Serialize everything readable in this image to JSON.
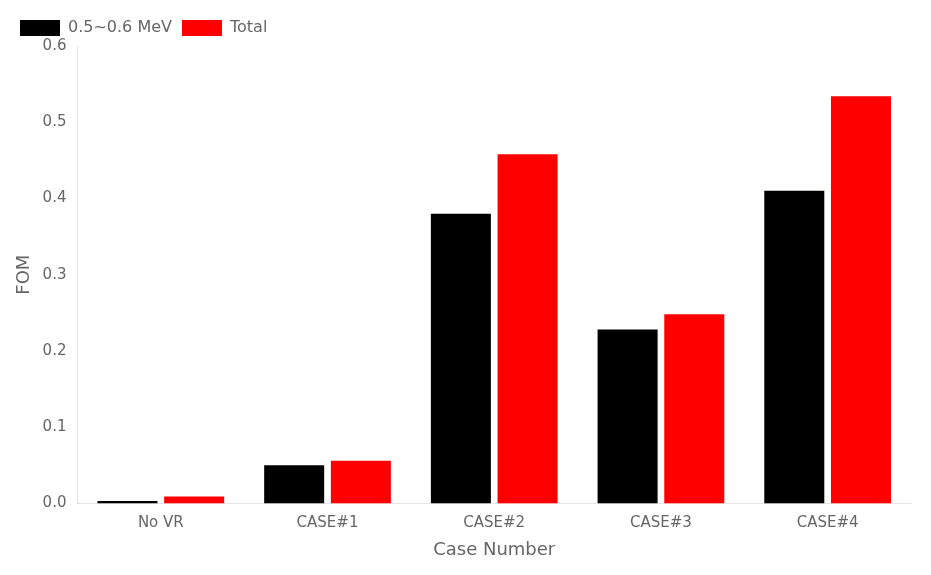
{
  "chart_data": {
    "type": "bar",
    "categories": [
      "No VR",
      "CASE#1",
      "CASE#2",
      "CASE#3",
      "CASE#4"
    ],
    "series": [
      {
        "name": "0.5~0.6 MeV",
        "color": "#000000",
        "values": [
          0.003,
          0.05,
          0.38,
          0.228,
          0.41
        ]
      },
      {
        "name": "Total",
        "color": "#ff0000",
        "values": [
          0.009,
          0.056,
          0.458,
          0.248,
          0.534
        ]
      }
    ],
    "xlabel": "Case Number",
    "ylabel": "FOM",
    "ylim": [
      0.0,
      0.6
    ],
    "yticks": [
      {
        "value": 0.0,
        "label": "0.0"
      },
      0.1,
      0.2,
      0.3,
      0.4,
      0.5,
      0.6
    ],
    "grid": false,
    "legend": "upper left"
  }
}
